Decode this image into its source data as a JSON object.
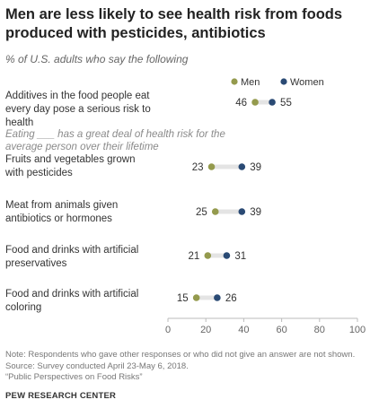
{
  "title": "Men are less likely to see health risk from foods produced with pesticides, antibiotics",
  "subtitle": "% of U.S. adults who say the following",
  "section_label": "Eating ___ has a great deal of health risk for the average person over their lifetime",
  "colors": {
    "men": "#949a4d",
    "women": "#2a4a74",
    "line": "#e4e4e4"
  },
  "chart_data": {
    "type": "scatter",
    "xlim": [
      0,
      100
    ],
    "x_ticks": [
      "0",
      "20",
      "40",
      "60",
      "80",
      "100"
    ],
    "categories": [
      "Additives in the food people eat every day pose a serious risk to health",
      "Fruits and vegetables grown with pesticides",
      "Meat from animals given antibiotics or hormones",
      "Food and drinks with artificial preservatives",
      "Food and drinks with artificial coloring"
    ],
    "series": [
      {
        "name": "Men",
        "values": [
          46,
          23,
          25,
          21,
          15
        ]
      },
      {
        "name": "Women",
        "values": [
          55,
          39,
          39,
          31,
          26
        ]
      }
    ],
    "legend_position": "top-right"
  },
  "notes": [
    "Note: Respondents who gave other responses or who did not give an answer are not shown.",
    "Source: Survey conducted April 23-May 6, 2018.",
    "“Public Perspectives on Food Risks”"
  ],
  "source_org": "PEW RESEARCH CENTER"
}
